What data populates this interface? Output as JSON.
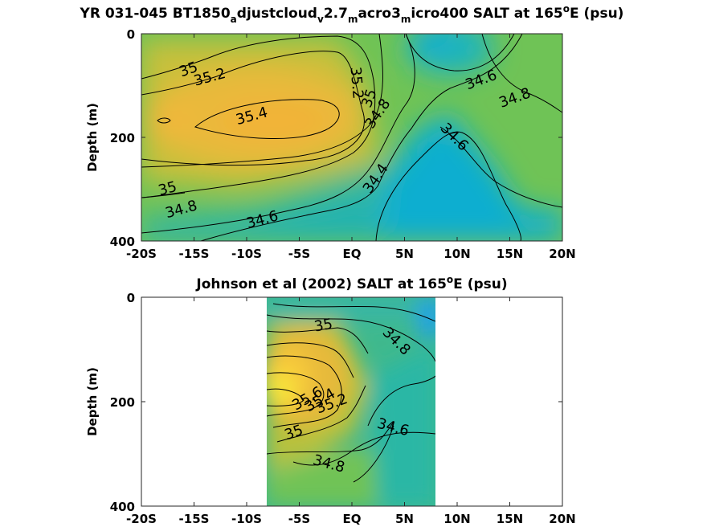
{
  "chart_data": [
    {
      "type": "contour",
      "title_main": "YR 031-045 BT1850",
      "title_parts": [
        {
          "text": "YR 031-045 BT1850",
          "sub": false
        },
        {
          "text": "a",
          "sub": true
        },
        {
          "text": "djustcloud",
          "sub": false
        },
        {
          "text": "v",
          "sub": true
        },
        {
          "text": "2.7",
          "sub": false
        },
        {
          "text": "m",
          "sub": true
        },
        {
          "text": "acro3",
          "sub": false
        },
        {
          "text": "m",
          "sub": true
        },
        {
          "text": "icro400 SALT at 165",
          "sub": false
        },
        {
          "text": "o",
          "sup": true
        },
        {
          "text": "E (psu)",
          "sub": false
        }
      ],
      "ylabel": "Depth (m)",
      "x_ticks": [
        "-20S",
        "-15S",
        "-10S",
        "-5S",
        "EQ",
        "5N",
        "10N",
        "15N",
        "20N"
      ],
      "y_ticks": [
        "0",
        "200",
        "400"
      ],
      "xlim": [
        -20,
        20
      ],
      "ylim": [
        0,
        400
      ],
      "data_extent_lat": [
        -20,
        20
      ],
      "contour_labels": [
        {
          "text": "35",
          "lat": -15.5,
          "depth": 70,
          "angle": -20
        },
        {
          "text": "35.2",
          "lat": -13.5,
          "depth": 85,
          "angle": -15
        },
        {
          "text": "35.4",
          "lat": -9.5,
          "depth": 160,
          "angle": -15
        },
        {
          "text": "35.2",
          "lat": 0.4,
          "depth": 95,
          "angle": 85
        },
        {
          "text": "35",
          "lat": 1.7,
          "depth": 125,
          "angle": -70
        },
        {
          "text": "34.8",
          "lat": 2.5,
          "depth": 155,
          "angle": -55
        },
        {
          "text": "34.6",
          "lat": 12.3,
          "depth": 90,
          "angle": -20
        },
        {
          "text": "34.8",
          "lat": 15.5,
          "depth": 125,
          "angle": -20
        },
        {
          "text": "34.6",
          "lat": 9.7,
          "depth": 200,
          "angle": 45
        },
        {
          "text": "34.4",
          "lat": 2.3,
          "depth": 280,
          "angle": -55
        },
        {
          "text": "35",
          "lat": -17.5,
          "depth": 300,
          "angle": -15
        },
        {
          "text": "34.8",
          "lat": -16.2,
          "depth": 340,
          "angle": -15
        },
        {
          "text": "34.6",
          "lat": -8.5,
          "depth": 360,
          "angle": -15
        }
      ],
      "colorscale": "parula",
      "clim": [
        34.2,
        35.8
      ]
    },
    {
      "type": "contour",
      "title_main": "Johnson et al (2002) SALT at 165",
      "title_parts": [
        {
          "text": "Johnson et al (2002) SALT at 165",
          "sub": false
        },
        {
          "text": "o",
          "sup": true
        },
        {
          "text": "E (psu)",
          "sub": false
        }
      ],
      "ylabel": "Depth (m)",
      "x_ticks": [
        "-20S",
        "-15S",
        "-10S",
        "-5S",
        "EQ",
        "5N",
        "10N",
        "15N",
        "20N"
      ],
      "y_ticks": [
        "0",
        "200",
        "400"
      ],
      "xlim": [
        -20,
        20
      ],
      "ylim": [
        0,
        400
      ],
      "data_extent_lat": [
        -8,
        8
      ],
      "contour_labels": [
        {
          "text": "35",
          "lat": -2.7,
          "depth": 55,
          "angle": -10
        },
        {
          "text": "34.8",
          "lat": 4.2,
          "depth": 85,
          "angle": 45
        },
        {
          "text": "35.6",
          "lat": -4.2,
          "depth": 195,
          "angle": -30
        },
        {
          "text": "35.4",
          "lat": -3.0,
          "depth": 198,
          "angle": -30
        },
        {
          "text": "35.2",
          "lat": -1.9,
          "depth": 205,
          "angle": -20
        },
        {
          "text": "35",
          "lat": -5.5,
          "depth": 260,
          "angle": -20
        },
        {
          "text": "34.6",
          "lat": 3.9,
          "depth": 250,
          "angle": 15
        },
        {
          "text": "34.8",
          "lat": -2.2,
          "depth": 320,
          "angle": 15
        }
      ],
      "colorscale": "parula",
      "clim": [
        34.2,
        35.8
      ]
    }
  ]
}
